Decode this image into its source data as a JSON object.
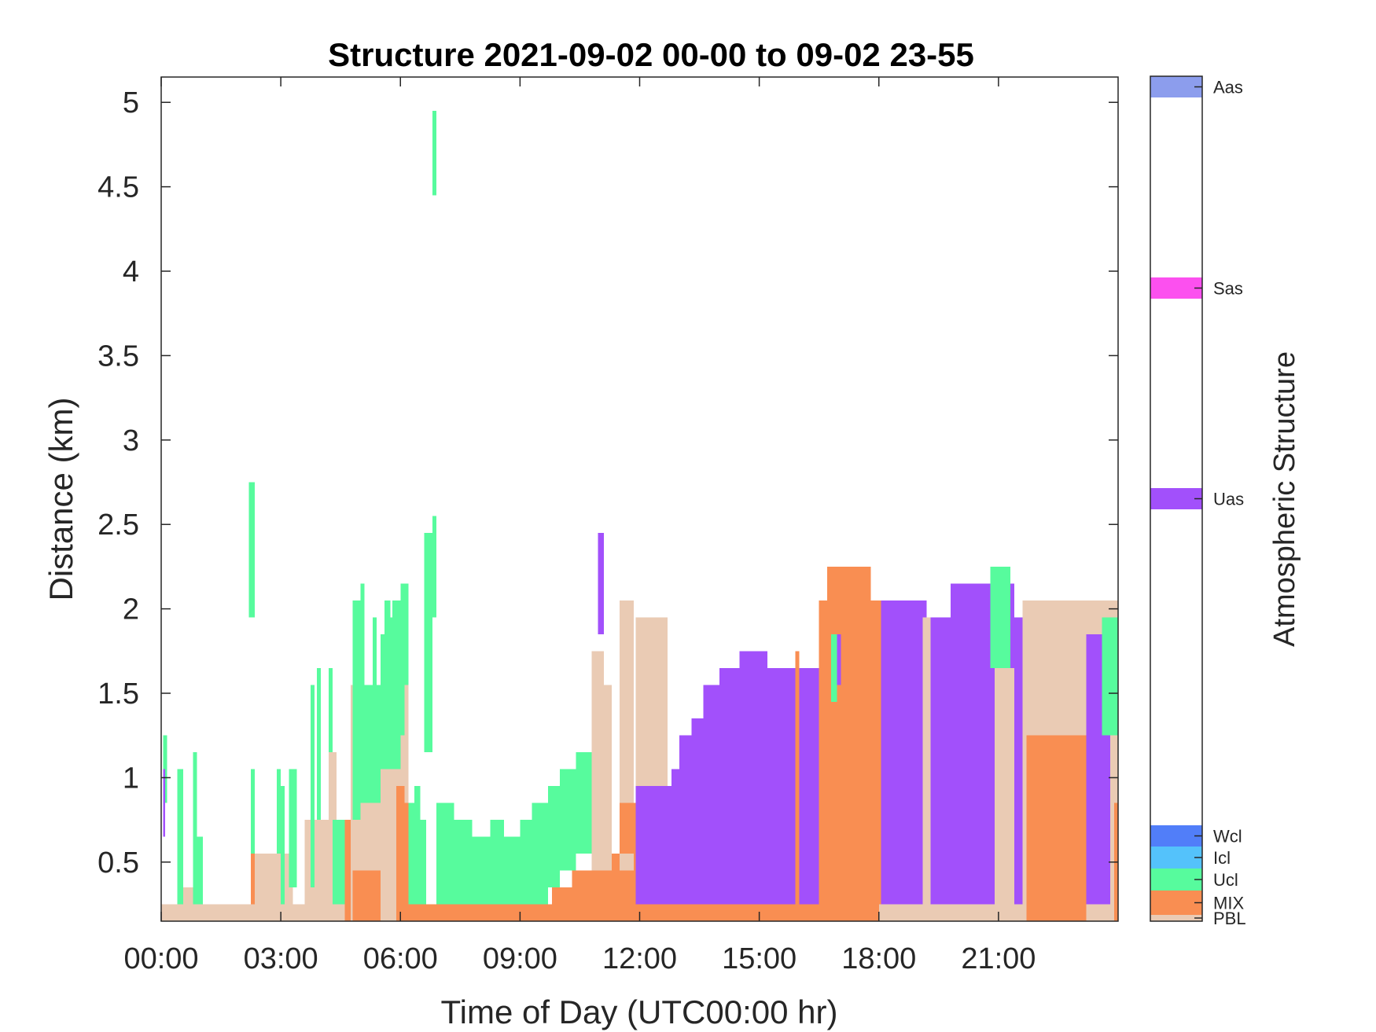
{
  "chart_data": {
    "type": "heatmap",
    "title": "Structure 2021-09-02 00-00 to 09-02 23-55",
    "xlabel": "Time of Day (UTC00:00 hr)",
    "ylabel": "Distance (km)",
    "x_ticks": [
      "00:00",
      "03:00",
      "06:00",
      "09:00",
      "12:00",
      "15:00",
      "18:00",
      "21:00"
    ],
    "x_tick_hours": [
      0,
      3,
      6,
      9,
      12,
      15,
      18,
      21
    ],
    "xlim_hours": [
      0,
      24
    ],
    "y_ticks": [
      "0.5",
      "1",
      "1.5",
      "2",
      "2.5",
      "3",
      "3.5",
      "4",
      "4.5",
      "5"
    ],
    "y_tick_values": [
      0.5,
      1,
      1.5,
      2,
      2.5,
      3,
      3.5,
      4,
      4.5,
      5
    ],
    "ylim_km": [
      0.15,
      5.15
    ],
    "grid": false,
    "colorbar": {
      "label": "Atmospheric Structure",
      "classes": [
        {
          "name": "PBL",
          "color": "#eacbb4"
        },
        {
          "name": "MIX",
          "color": "#f98e52"
        },
        {
          "name": "Ucl",
          "color": "#57fb9d"
        },
        {
          "name": "Icl",
          "color": "#54c2fb"
        },
        {
          "name": "Wcl",
          "color": "#517ef9"
        },
        {
          "name": "Uas",
          "color": "#a250fb"
        },
        {
          "name": "Sas",
          "color": "#fc50ef"
        },
        {
          "name": "Aas",
          "color": "#8c9ded"
        }
      ]
    },
    "cells": [
      {
        "c": "PBL",
        "t0": 0.0,
        "t1": 4.8,
        "y0": 0.15,
        "y1": 0.25
      },
      {
        "c": "Ucl",
        "t0": 0.05,
        "t1": 0.15,
        "y0": 0.85,
        "y1": 1.25
      },
      {
        "c": "Uas",
        "t0": 0.05,
        "t1": 0.1,
        "y0": 0.65,
        "y1": 1.05
      },
      {
        "c": "PBL",
        "t0": 0.4,
        "t1": 0.9,
        "y0": 0.25,
        "y1": 0.35
      },
      {
        "c": "Ucl",
        "t0": 0.4,
        "t1": 0.55,
        "y0": 0.25,
        "y1": 1.05
      },
      {
        "c": "Ucl",
        "t0": 0.8,
        "t1": 0.9,
        "y0": 0.25,
        "y1": 1.15
      },
      {
        "c": "Ucl",
        "t0": 0.9,
        "t1": 1.05,
        "y0": 0.25,
        "y1": 0.65
      },
      {
        "c": "Ucl",
        "t0": 2.2,
        "t1": 2.35,
        "y0": 1.95,
        "y1": 2.75
      },
      {
        "c": "PBL",
        "t0": 2.25,
        "t1": 3.3,
        "y0": 0.25,
        "y1": 0.55
      },
      {
        "c": "MIX",
        "t0": 2.25,
        "t1": 2.35,
        "y0": 0.25,
        "y1": 0.55
      },
      {
        "c": "Ucl",
        "t0": 2.25,
        "t1": 2.35,
        "y0": 0.55,
        "y1": 1.05
      },
      {
        "c": "Ucl",
        "t0": 2.9,
        "t1": 3.0,
        "y0": 0.55,
        "y1": 1.05
      },
      {
        "c": "Ucl",
        "t0": 3.0,
        "t1": 3.1,
        "y0": 0.25,
        "y1": 0.95
      },
      {
        "c": "Ucl",
        "t0": 3.2,
        "t1": 3.4,
        "y0": 0.35,
        "y1": 1.05
      },
      {
        "c": "PBL",
        "t0": 3.6,
        "t1": 4.8,
        "y0": 0.25,
        "y1": 0.75
      },
      {
        "c": "Ucl",
        "t0": 3.75,
        "t1": 3.85,
        "y0": 0.35,
        "y1": 1.55
      },
      {
        "c": "Ucl",
        "t0": 3.9,
        "t1": 4.0,
        "y0": 0.75,
        "y1": 1.65
      },
      {
        "c": "Ucl",
        "t0": 4.2,
        "t1": 4.3,
        "y0": 0.75,
        "y1": 1.65
      },
      {
        "c": "PBL",
        "t0": 4.2,
        "t1": 4.4,
        "y0": 0.25,
        "y1": 1.15
      },
      {
        "c": "Ucl",
        "t0": 4.3,
        "t1": 4.6,
        "y0": 0.25,
        "y1": 0.75
      },
      {
        "c": "MIX",
        "t0": 4.6,
        "t1": 4.75,
        "y0": 0.15,
        "y1": 0.75
      },
      {
        "c": "PBL",
        "t0": 4.75,
        "t1": 6.2,
        "y0": 0.15,
        "y1": 1.55
      },
      {
        "c": "MIX",
        "t0": 4.8,
        "t1": 5.5,
        "y0": 0.15,
        "y1": 0.45
      },
      {
        "c": "Ucl",
        "t0": 4.8,
        "t1": 5.0,
        "y0": 0.75,
        "y1": 2.05
      },
      {
        "c": "Ucl",
        "t0": 4.95,
        "t1": 5.5,
        "y0": 0.85,
        "y1": 1.55
      },
      {
        "c": "Ucl",
        "t0": 5.0,
        "t1": 5.1,
        "y0": 1.45,
        "y1": 2.15
      },
      {
        "c": "Ucl",
        "t0": 5.3,
        "t1": 5.4,
        "y0": 1.05,
        "y1": 1.95
      },
      {
        "c": "Ucl",
        "t0": 5.5,
        "t1": 6.0,
        "y0": 1.05,
        "y1": 1.85
      },
      {
        "c": "Ucl",
        "t0": 5.6,
        "t1": 5.75,
        "y0": 1.65,
        "y1": 2.05
      },
      {
        "c": "Ucl",
        "t0": 5.75,
        "t1": 6.1,
        "y0": 1.25,
        "y1": 1.95
      },
      {
        "c": "Ucl",
        "t0": 5.8,
        "t1": 6.05,
        "y0": 1.45,
        "y1": 2.05
      },
      {
        "c": "Ucl",
        "t0": 6.0,
        "t1": 6.2,
        "y0": 1.55,
        "y1": 2.15
      },
      {
        "c": "MIX",
        "t0": 5.9,
        "t1": 6.1,
        "y0": 0.15,
        "y1": 0.95
      },
      {
        "c": "MIX",
        "t0": 6.1,
        "t1": 9.8,
        "y0": 0.15,
        "y1": 0.25
      },
      {
        "c": "MIX",
        "t0": 6.1,
        "t1": 6.2,
        "y0": 0.25,
        "y1": 0.85
      },
      {
        "c": "Ucl",
        "t0": 6.2,
        "t1": 6.5,
        "y0": 0.25,
        "y1": 0.85
      },
      {
        "c": "Ucl",
        "t0": 6.35,
        "t1": 6.5,
        "y0": 0.75,
        "y1": 0.95
      },
      {
        "c": "Ucl",
        "t0": 6.5,
        "t1": 6.65,
        "y0": 0.25,
        "y1": 0.75
      },
      {
        "c": "Ucl",
        "t0": 6.6,
        "t1": 6.8,
        "y0": 1.15,
        "y1": 2.45
      },
      {
        "c": "Ucl",
        "t0": 6.8,
        "t1": 6.9,
        "y0": 1.95,
        "y1": 2.55
      },
      {
        "c": "Ucl",
        "t0": 6.8,
        "t1": 6.9,
        "y0": 4.45,
        "y1": 4.95
      },
      {
        "c": "Ucl",
        "t0": 6.9,
        "t1": 7.35,
        "y0": 0.25,
        "y1": 0.85
      },
      {
        "c": "Ucl",
        "t0": 7.35,
        "t1": 7.8,
        "y0": 0.25,
        "y1": 0.75
      },
      {
        "c": "Ucl",
        "t0": 7.8,
        "t1": 8.25,
        "y0": 0.25,
        "y1": 0.65
      },
      {
        "c": "Ucl",
        "t0": 8.25,
        "t1": 8.6,
        "y0": 0.25,
        "y1": 0.75
      },
      {
        "c": "Ucl",
        "t0": 8.6,
        "t1": 9.0,
        "y0": 0.25,
        "y1": 0.65
      },
      {
        "c": "Ucl",
        "t0": 9.0,
        "t1": 9.3,
        "y0": 0.25,
        "y1": 0.75
      },
      {
        "c": "Ucl",
        "t0": 9.3,
        "t1": 9.7,
        "y0": 0.25,
        "y1": 0.85
      },
      {
        "c": "Ucl",
        "t0": 9.7,
        "t1": 10.0,
        "y0": 0.35,
        "y1": 0.95
      },
      {
        "c": "Ucl",
        "t0": 10.0,
        "t1": 10.4,
        "y0": 0.45,
        "y1": 1.05
      },
      {
        "c": "Ucl",
        "t0": 10.4,
        "t1": 10.8,
        "y0": 0.55,
        "y1": 1.15
      },
      {
        "c": "MIX",
        "t0": 9.8,
        "t1": 10.3,
        "y0": 0.15,
        "y1": 0.35
      },
      {
        "c": "MIX",
        "t0": 10.3,
        "t1": 10.8,
        "y0": 0.15,
        "y1": 0.45
      },
      {
        "c": "MIX",
        "t0": 10.8,
        "t1": 11.9,
        "y0": 0.15,
        "y1": 0.55
      },
      {
        "c": "PBL",
        "t0": 10.8,
        "t1": 11.1,
        "y0": 0.45,
        "y1": 1.75
      },
      {
        "c": "PBL",
        "t0": 11.1,
        "t1": 11.3,
        "y0": 0.45,
        "y1": 1.55
      },
      {
        "c": "PBL",
        "t0": 11.5,
        "t1": 11.85,
        "y0": 0.45,
        "y1": 2.05
      },
      {
        "c": "MIX",
        "t0": 11.5,
        "t1": 11.9,
        "y0": 0.55,
        "y1": 0.85
      },
      {
        "c": "Uas",
        "t0": 10.95,
        "t1": 11.1,
        "y0": 1.85,
        "y1": 2.45
      },
      {
        "c": "MIX",
        "t0": 11.9,
        "t1": 18.0,
        "y0": 0.15,
        "y1": 0.25
      },
      {
        "c": "PBL",
        "t0": 11.9,
        "t1": 12.7,
        "y0": 0.95,
        "y1": 1.95
      },
      {
        "c": "Uas",
        "t0": 11.9,
        "t1": 12.8,
        "y0": 0.25,
        "y1": 0.95
      },
      {
        "c": "Uas",
        "t0": 12.8,
        "t1": 13.0,
        "y0": 0.25,
        "y1": 1.05
      },
      {
        "c": "Uas",
        "t0": 13.0,
        "t1": 13.3,
        "y0": 0.25,
        "y1": 1.25
      },
      {
        "c": "Uas",
        "t0": 13.3,
        "t1": 13.6,
        "y0": 0.25,
        "y1": 1.35
      },
      {
        "c": "Uas",
        "t0": 13.6,
        "t1": 14.0,
        "y0": 0.25,
        "y1": 1.55
      },
      {
        "c": "Uas",
        "t0": 14.0,
        "t1": 14.5,
        "y0": 0.25,
        "y1": 1.65
      },
      {
        "c": "Uas",
        "t0": 14.5,
        "t1": 15.2,
        "y0": 0.25,
        "y1": 1.75
      },
      {
        "c": "Uas",
        "t0": 15.2,
        "t1": 15.6,
        "y0": 0.25,
        "y1": 1.65
      },
      {
        "c": "Uas",
        "t0": 15.6,
        "t1": 16.5,
        "y0": 0.25,
        "y1": 1.65
      },
      {
        "c": "MIX",
        "t0": 15.9,
        "t1": 16.0,
        "y0": 0.25,
        "y1": 1.75
      },
      {
        "c": "MIX",
        "t0": 16.5,
        "t1": 18.05,
        "y0": 0.15,
        "y1": 2.05
      },
      {
        "c": "MIX",
        "t0": 16.7,
        "t1": 17.8,
        "y0": 1.75,
        "y1": 2.25
      },
      {
        "c": "Ucl",
        "t0": 16.8,
        "t1": 16.95,
        "y0": 1.45,
        "y1": 1.85
      },
      {
        "c": "Uas",
        "t0": 16.95,
        "t1": 17.05,
        "y0": 1.55,
        "y1": 1.85
      },
      {
        "c": "PBL",
        "t0": 18.0,
        "t1": 24.0,
        "y0": 0.15,
        "y1": 0.25
      },
      {
        "c": "Uas",
        "t0": 18.05,
        "t1": 19.2,
        "y0": 0.25,
        "y1": 2.05
      },
      {
        "c": "PBL",
        "t0": 19.1,
        "t1": 19.3,
        "y0": 0.25,
        "y1": 1.95
      },
      {
        "c": "Uas",
        "t0": 19.3,
        "t1": 21.6,
        "y0": 0.25,
        "y1": 1.95
      },
      {
        "c": "Uas",
        "t0": 19.8,
        "t1": 21.4,
        "y0": 1.65,
        "y1": 2.15
      },
      {
        "c": "Ucl",
        "t0": 20.8,
        "t1": 21.3,
        "y0": 1.65,
        "y1": 2.25
      },
      {
        "c": "PBL",
        "t0": 20.9,
        "t1": 21.4,
        "y0": 0.25,
        "y1": 1.65
      },
      {
        "c": "PBL",
        "t0": 21.6,
        "t1": 24.0,
        "y0": 0.15,
        "y1": 2.05
      },
      {
        "c": "MIX",
        "t0": 21.7,
        "t1": 23.2,
        "y0": 0.15,
        "y1": 1.25
      },
      {
        "c": "Uas",
        "t0": 23.2,
        "t1": 23.8,
        "y0": 0.25,
        "y1": 1.85
      },
      {
        "c": "Ucl",
        "t0": 23.6,
        "t1": 24.0,
        "y0": 1.25,
        "y1": 1.95
      },
      {
        "c": "MIX",
        "t0": 23.9,
        "t1": 24.0,
        "y0": 0.15,
        "y1": 0.85
      }
    ]
  }
}
